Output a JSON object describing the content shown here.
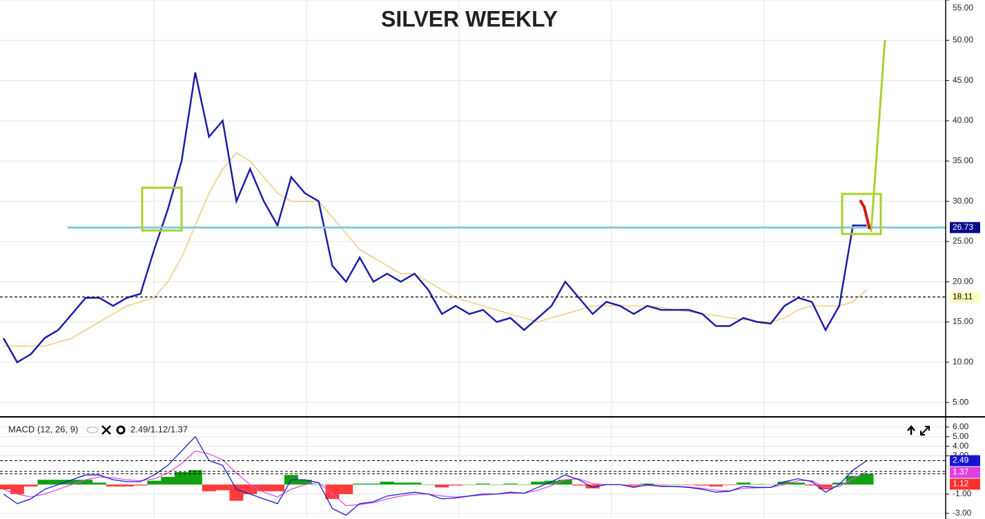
{
  "chart_data": [
    {
      "type": "line",
      "title": "SILVER WEEKLY",
      "title_color": "#3a48c0",
      "ylim": [
        3.3,
        55
      ],
      "yticks": [
        {
          "value": 5,
          "label": "5.00"
        },
        {
          "value": 10,
          "label": "10.00"
        },
        {
          "value": 15,
          "label": "15.00"
        },
        {
          "value": 20,
          "label": "20.00"
        },
        {
          "value": 25,
          "label": "25.00"
        },
        {
          "value": 30,
          "label": "30.00"
        },
        {
          "value": 35,
          "label": "35.00"
        },
        {
          "value": 40,
          "label": "40.00"
        },
        {
          "value": 45,
          "label": "45.00"
        },
        {
          "value": 50,
          "label": "50.00"
        },
        {
          "value": 55,
          "label": "55.00"
        }
      ],
      "grid": true,
      "series": [
        {
          "color": "#1c1ca8",
          "values": [
            13,
            10,
            11,
            13,
            14,
            16,
            18,
            18,
            17,
            18,
            18.5,
            24,
            29,
            35,
            46,
            38,
            40,
            30,
            34,
            30,
            27,
            33,
            31,
            30,
            22,
            20,
            23,
            20,
            21,
            20,
            21,
            19,
            16,
            17,
            16,
            16.5,
            15,
            15.5,
            14,
            15.5,
            17,
            20,
            18,
            16,
            17.5,
            17,
            16,
            17,
            16.5,
            16.5,
            16.5,
            16,
            14.5,
            14.5,
            15.5,
            15,
            14.8,
            17,
            18,
            17.5,
            14,
            17,
            27,
            27
          ]
        },
        {
          "color": "#f0c060",
          "values": [
            12,
            12,
            12,
            12,
            12.5,
            13,
            14,
            15,
            16,
            17,
            17.5,
            18,
            20,
            23,
            27,
            31,
            34,
            36,
            35,
            33,
            31,
            30,
            30,
            30,
            28,
            26,
            24,
            23,
            22,
            21,
            21,
            20,
            19,
            18,
            17.5,
            17,
            16.5,
            16,
            15.5,
            15,
            15.5,
            16,
            16.5,
            17,
            17,
            17,
            17,
            17,
            16.8,
            16.5,
            16.3,
            16,
            15.8,
            15.5,
            15.3,
            15.1,
            15,
            15.5,
            16.5,
            17,
            17,
            17,
            17.5,
            19
          ]
        }
      ],
      "hlines": [
        {
          "value": 26.73,
          "color": "#80ccd8",
          "style": "solid",
          "tag_color": "#0a0a8c",
          "tag_text_color": "#ffffff"
        },
        {
          "value": 18.11,
          "color": "#000000",
          "style": "dashed",
          "tag_color": "#ffffc0",
          "tag_text_color": "#000000"
        }
      ]
    },
    {
      "type": "macd",
      "title": "MACD (12, 26, 9)",
      "readout": "2.49/1.12/1.37",
      "ylim": [
        -3.6,
        7.0
      ],
      "yticks": [
        {
          "value": 6,
          "label": "6.00"
        },
        {
          "value": 5,
          "label": "5.00"
        },
        {
          "value": 4,
          "label": "4.00"
        },
        {
          "value": 3,
          "label": "3.00"
        },
        {
          "value": -1,
          "label": "-1.00"
        },
        {
          "value": -3,
          "label": "-3.00"
        }
      ],
      "series": [
        {
          "color": "#1c1cc8",
          "values": [
            -1,
            -2,
            -1.5,
            -0.5,
            0,
            0.5,
            1,
            1,
            0.5,
            0.3,
            0.3,
            1,
            2,
            3.5,
            5,
            2.5,
            2,
            -0.5,
            -1,
            -1.5,
            -2,
            0.5,
            0.5,
            0.2,
            -2.5,
            -3.2,
            -2,
            -1.8,
            -1.2,
            -1,
            -0.8,
            -1,
            -1.5,
            -1.4,
            -1.2,
            -1,
            -1,
            -0.8,
            -0.9,
            -0.3,
            0.3,
            1,
            0.5,
            -0.3,
            0,
            0,
            -0.3,
            0,
            -0.2,
            -0.2,
            -0.3,
            -0.5,
            -0.8,
            -0.7,
            -0.2,
            -0.3,
            -0.3,
            0.3,
            0.6,
            0.3,
            -0.8,
            0,
            1.5,
            2.49
          ]
        },
        {
          "color": "#e050e0",
          "values": [
            -0.5,
            -1,
            -1.3,
            -1,
            -0.5,
            0,
            0.5,
            0.8,
            0.7,
            0.5,
            0.4,
            0.6,
            1.2,
            2.2,
            3.5,
            3.2,
            2.6,
            1.2,
            0,
            -0.8,
            -1.3,
            -0.5,
            0,
            0.2,
            -1,
            -2.2,
            -2.1,
            -1.9,
            -1.5,
            -1.2,
            -1,
            -1,
            -1.2,
            -1.3,
            -1.2,
            -1.1,
            -1,
            -0.9,
            -0.9,
            -0.6,
            -0.1,
            0.5,
            0.6,
            0.1,
            0,
            0,
            -0.2,
            -0.1,
            -0.15,
            -0.2,
            -0.25,
            -0.4,
            -0.6,
            -0.65,
            -0.4,
            -0.35,
            -0.3,
            0,
            0.4,
            0.4,
            -0.3,
            -0.2,
            0.6,
            1.37
          ]
        }
      ],
      "histogram": {
        "up_color": "#10a010",
        "down_color": "#ff3b3b",
        "values": [
          -0.5,
          -1,
          -0.2,
          0.5,
          0.5,
          0.5,
          0.5,
          0.2,
          -0.2,
          -0.2,
          -0.1,
          0.4,
          0.8,
          1.3,
          1.5,
          -0.7,
          -0.6,
          -1.7,
          -1,
          -0.7,
          -0.7,
          1,
          0.5,
          0,
          -1.5,
          -1,
          0.1,
          0.1,
          0.3,
          0.2,
          0.2,
          0,
          -0.3,
          -0.1,
          0,
          0.1,
          0,
          0.1,
          0,
          0.3,
          0.4,
          0.5,
          -0.1,
          -0.4,
          0,
          0,
          -0.1,
          0.1,
          -0.05,
          0,
          -0.05,
          -0.1,
          -0.2,
          -0.05,
          0.2,
          0.05,
          0,
          0.3,
          0.2,
          -0.1,
          -0.5,
          0.2,
          0.9,
          1.12
        ]
      },
      "levels": [
        {
          "value": 2.49,
          "color": "#1616d0"
        },
        {
          "value": 1.37,
          "color": "#e040e0"
        },
        {
          "value": 1.12,
          "color": "#ff3030"
        }
      ]
    }
  ]
}
